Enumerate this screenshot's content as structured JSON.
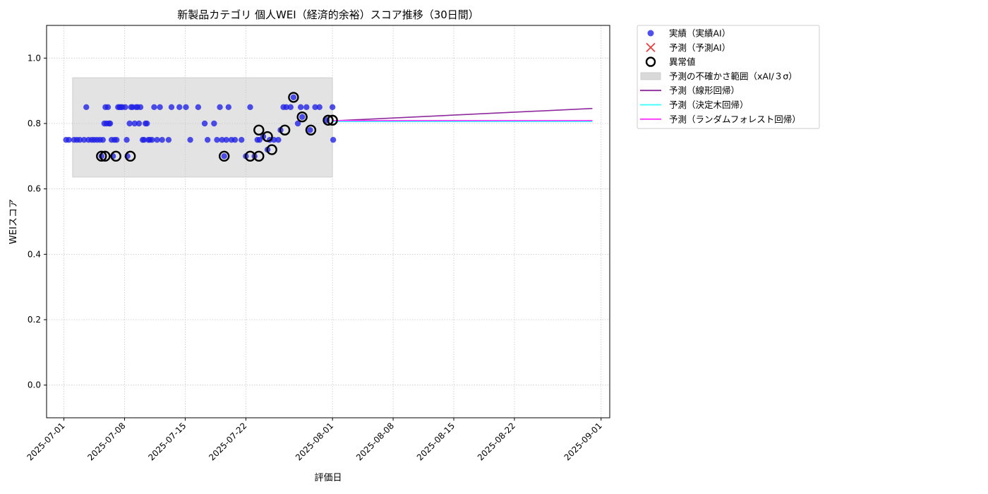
{
  "chart_data": {
    "type": "scatter",
    "title": "新製品カテゴリ 個人WEI（経済的余裕）スコア推移（30日間）",
    "xlabel": "評価日",
    "ylabel": "WEIスコア",
    "xlim": [
      "2025-06-29",
      "2025-09-02"
    ],
    "ylim": [
      -0.1,
      1.1
    ],
    "x_ticks": [
      "2025-07-01",
      "2025-07-08",
      "2025-07-15",
      "2025-07-22",
      "2025-08-01",
      "2025-08-08",
      "2025-08-15",
      "2025-08-22",
      "2025-09-01"
    ],
    "y_ticks": [
      "0.0",
      "0.2",
      "0.4",
      "0.6",
      "0.8",
      "1.0"
    ],
    "grid": true,
    "legend_position": "outside-top-right",
    "colors": {
      "actual": "#1f1fe6",
      "predicted": "#e64040",
      "uncertainty": "#d9d9d9",
      "linear": "#8e2a9e",
      "tree": "#33ffff",
      "forest": "#ff33ff"
    },
    "legend": [
      {
        "key": "actual",
        "label": "実績（実績AI）",
        "marker": "dot"
      },
      {
        "key": "predicted",
        "label": "予測（予測AI）",
        "marker": "x"
      },
      {
        "key": "anomaly",
        "label": "異常値",
        "marker": "ring"
      },
      {
        "key": "uncertainty",
        "label": "予測の不確かさ範囲（xAI/３σ）",
        "marker": "band"
      },
      {
        "key": "linear",
        "label": "予測（線形回帰）",
        "marker": "line"
      },
      {
        "key": "tree",
        "label": "予測（決定木回帰）",
        "marker": "line"
      },
      {
        "key": "forest",
        "label": "予測（ランダムフォレスト回帰）",
        "marker": "line"
      }
    ],
    "uncertainty_band": {
      "x_start": "2025-07-02",
      "x_end": "2025-08-01",
      "y_low": 0.636,
      "y_high": 0.94
    },
    "actual_points": [
      [
        "2025-07-01T06:00",
        0.75
      ],
      [
        "2025-07-01T14:00",
        0.75
      ],
      [
        "2025-07-02T04:00",
        0.75
      ],
      [
        "2025-07-02T12:00",
        0.75
      ],
      [
        "2025-07-02T20:00",
        0.75
      ],
      [
        "2025-07-03T08:00",
        0.75
      ],
      [
        "2025-07-03T14:00",
        0.85
      ],
      [
        "2025-07-03T20:00",
        0.75
      ],
      [
        "2025-07-04T05:00",
        0.75
      ],
      [
        "2025-07-04T12:00",
        0.75
      ],
      [
        "2025-07-04T20:00",
        0.75
      ],
      [
        "2025-07-05T04:00",
        0.75
      ],
      [
        "2025-07-05T08:00",
        0.7
      ],
      [
        "2025-07-05T12:00",
        0.75
      ],
      [
        "2025-07-05T16:00",
        0.8
      ],
      [
        "2025-07-05T19:00",
        0.85
      ],
      [
        "2025-07-05T22:00",
        0.8
      ],
      [
        "2025-07-06T02:00",
        0.85
      ],
      [
        "2025-07-06T05:00",
        0.8
      ],
      [
        "2025-07-06T08:00",
        0.8
      ],
      [
        "2025-07-06T12:00",
        0.75
      ],
      [
        "2025-07-06T16:00",
        0.7
      ],
      [
        "2025-07-06T20:00",
        0.75
      ],
      [
        "2025-07-07T02:00",
        0.75
      ],
      [
        "2025-07-07T06:00",
        0.85
      ],
      [
        "2025-07-07T10:00",
        0.85
      ],
      [
        "2025-07-07T14:00",
        0.85
      ],
      [
        "2025-07-07T18:00",
        0.85
      ],
      [
        "2025-07-08T02:00",
        0.85
      ],
      [
        "2025-07-08T06:00",
        0.75
      ],
      [
        "2025-07-08T08:00",
        0.7
      ],
      [
        "2025-07-08T14:00",
        0.8
      ],
      [
        "2025-07-08T18:00",
        0.85
      ],
      [
        "2025-07-08T22:00",
        0.85
      ],
      [
        "2025-07-09T04:00",
        0.8
      ],
      [
        "2025-07-09T08:00",
        0.85
      ],
      [
        "2025-07-09T12:00",
        0.85
      ],
      [
        "2025-07-09T16:00",
        0.8
      ],
      [
        "2025-07-09T20:00",
        0.85
      ],
      [
        "2025-07-10T02:00",
        0.75
      ],
      [
        "2025-07-10T06:00",
        0.75
      ],
      [
        "2025-07-10T10:00",
        0.8
      ],
      [
        "2025-07-10T14:00",
        0.8
      ],
      [
        "2025-07-10T18:00",
        0.75
      ],
      [
        "2025-07-10T22:00",
        0.75
      ],
      [
        "2025-07-11T04:00",
        0.75
      ],
      [
        "2025-07-11T10:00",
        0.85
      ],
      [
        "2025-07-11T18:00",
        0.75
      ],
      [
        "2025-07-12T02:00",
        0.85
      ],
      [
        "2025-07-12T08:00",
        0.75
      ],
      [
        "2025-07-13T02:00",
        0.75
      ],
      [
        "2025-07-13T10:00",
        0.85
      ],
      [
        "2025-07-14T08:00",
        0.85
      ],
      [
        "2025-07-15T02:00",
        0.85
      ],
      [
        "2025-07-15T14:00",
        0.75
      ],
      [
        "2025-07-16T12:00",
        0.85
      ],
      [
        "2025-07-17T06:00",
        0.8
      ],
      [
        "2025-07-17T14:00",
        0.75
      ],
      [
        "2025-07-18T08:00",
        0.8
      ],
      [
        "2025-07-18T16:00",
        0.75
      ],
      [
        "2025-07-19T00:00",
        0.85
      ],
      [
        "2025-07-19T06:00",
        0.75
      ],
      [
        "2025-07-19T12:00",
        0.7
      ],
      [
        "2025-07-19T18:00",
        0.75
      ],
      [
        "2025-07-20T00:00",
        0.85
      ],
      [
        "2025-07-20T08:00",
        0.75
      ],
      [
        "2025-07-20T18:00",
        0.75
      ],
      [
        "2025-07-21T12:00",
        0.75
      ],
      [
        "2025-07-22T00:00",
        0.7
      ],
      [
        "2025-07-22T12:00",
        0.85
      ],
      [
        "2025-07-23T00:00",
        0.7
      ],
      [
        "2025-07-23T08:00",
        0.75
      ],
      [
        "2025-07-23T14:00",
        0.75
      ],
      [
        "2025-07-24T00:00",
        0.76
      ],
      [
        "2025-07-24T12:00",
        0.72
      ],
      [
        "2025-07-24T18:00",
        0.75
      ],
      [
        "2025-07-25T06:00",
        0.75
      ],
      [
        "2025-07-25T18:00",
        0.75
      ],
      [
        "2025-07-26T00:00",
        0.78
      ],
      [
        "2025-07-26T08:00",
        0.85
      ],
      [
        "2025-07-26T16:00",
        0.85
      ],
      [
        "2025-07-27T04:00",
        0.85
      ],
      [
        "2025-07-27T12:00",
        0.88
      ],
      [
        "2025-07-28T00:00",
        0.8
      ],
      [
        "2025-07-28T08:00",
        0.85
      ],
      [
        "2025-07-28T12:00",
        0.82
      ],
      [
        "2025-07-29T00:00",
        0.85
      ],
      [
        "2025-07-29T10:00",
        0.78
      ],
      [
        "2025-07-30T00:00",
        0.85
      ],
      [
        "2025-07-30T12:00",
        0.85
      ],
      [
        "2025-07-31T08:00",
        0.81
      ],
      [
        "2025-08-01T00:00",
        0.85
      ],
      [
        "2025-08-01T02:00",
        0.75
      ]
    ],
    "anomaly_points": [
      [
        "2025-07-05T08:00",
        0.7
      ],
      [
        "2025-07-05T18:00",
        0.7
      ],
      [
        "2025-07-07T00:00",
        0.7
      ],
      [
        "2025-07-08T16:00",
        0.7
      ],
      [
        "2025-07-19T12:00",
        0.7
      ],
      [
        "2025-07-22T12:00",
        0.7
      ],
      [
        "2025-07-23T12:00",
        0.7
      ],
      [
        "2025-07-23T12:00",
        0.78
      ],
      [
        "2025-07-24T12:00",
        0.76
      ],
      [
        "2025-07-25T00:00",
        0.72
      ],
      [
        "2025-07-26T12:00",
        0.78
      ],
      [
        "2025-07-27T12:00",
        0.88
      ],
      [
        "2025-07-28T12:00",
        0.82
      ],
      [
        "2025-07-29T12:00",
        0.78
      ],
      [
        "2025-07-31T12:00",
        0.81
      ],
      [
        "2025-08-01T00:00",
        0.81
      ]
    ],
    "predicted_points": [],
    "lines": [
      {
        "key": "linear",
        "x": [
          "2025-08-01",
          "2025-08-31"
        ],
        "y": [
          0.808,
          0.846
        ]
      },
      {
        "key": "tree",
        "x": [
          "2025-08-01",
          "2025-08-31"
        ],
        "y": [
          0.806,
          0.806
        ]
      },
      {
        "key": "forest",
        "x": [
          "2025-08-01",
          "2025-08-31"
        ],
        "y": [
          0.809,
          0.809
        ]
      }
    ]
  }
}
